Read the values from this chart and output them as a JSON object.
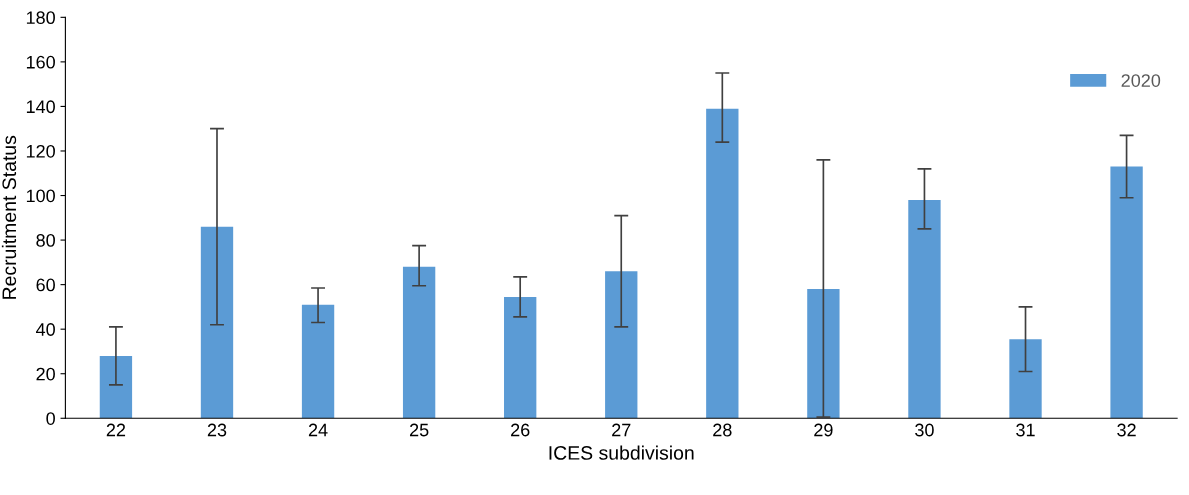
{
  "chart_data": {
    "type": "bar",
    "xlabel": "ICES subdivision",
    "ylabel": "Recruitment Status",
    "categories": [
      "22",
      "23",
      "24",
      "25",
      "26",
      "27",
      "28",
      "29",
      "30",
      "31",
      "32"
    ],
    "series": [
      {
        "name": "2020",
        "color": "#5b9bd5",
        "values": [
          28,
          86,
          51,
          68,
          54.5,
          66,
          139,
          58,
          98,
          35.5,
          113
        ],
        "errors": [
          [
            15,
            41
          ],
          [
            42,
            130
          ],
          [
            43,
            58.5
          ],
          [
            59.5,
            77.5
          ],
          [
            45.5,
            63.5
          ],
          [
            41,
            91
          ],
          [
            124,
            155
          ],
          [
            0.5,
            116
          ],
          [
            85,
            112
          ],
          [
            21,
            50
          ],
          [
            99,
            127
          ]
        ]
      }
    ],
    "ylim": [
      0,
      180
    ],
    "yticks": [
      0,
      20,
      40,
      60,
      80,
      100,
      120,
      140,
      160,
      180
    ],
    "grid": false,
    "legend": "top right"
  }
}
